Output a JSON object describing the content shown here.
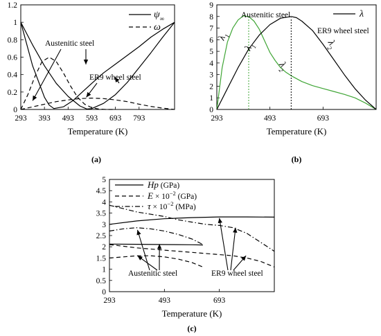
{
  "chart_data": [
    {
      "id": "a",
      "type": "line",
      "panel_label": "(a)",
      "xlabel": "Temperature (K)",
      "ylabel": "",
      "xlim": [
        293,
        943
      ],
      "ylim": [
        0,
        1.2
      ],
      "xticks": [
        293,
        393,
        493,
        593,
        693,
        793
      ],
      "yticks": [
        0,
        0.2,
        0.4,
        0.6,
        0.8,
        1,
        1.2
      ],
      "legend_position": "top-right",
      "legend": [
        {
          "symbol": "ψ",
          "subscript": "∞",
          "style": "solid"
        },
        {
          "symbol": "ω",
          "subscript": "",
          "style": "dashed"
        }
      ],
      "series": [
        {
          "material": "Austenitic steel",
          "quantity": "psi",
          "style": "solid",
          "x": [
            293,
            343,
            393,
            413,
            433,
            473,
            513,
            553,
            593,
            643,
            693,
            743,
            793,
            843,
            893,
            943
          ],
          "y": [
            1,
            0.5,
            0.14,
            0.05,
            0.01,
            0.03,
            0.1,
            0.2,
            0.3,
            0.42,
            0.52,
            0.62,
            0.72,
            0.83,
            0.92,
            1
          ]
        },
        {
          "material": "ER9 wheel steel",
          "quantity": "psi",
          "style": "solid",
          "x": [
            293,
            343,
            393,
            443,
            493,
            543,
            573,
            593,
            643,
            693,
            743,
            793,
            843,
            893,
            943
          ],
          "y": [
            1,
            0.74,
            0.5,
            0.3,
            0.15,
            0.04,
            0.005,
            0.01,
            0.07,
            0.17,
            0.31,
            0.48,
            0.65,
            0.83,
            1
          ]
        },
        {
          "material": "Austenitic steel",
          "quantity": "omega",
          "style": "dashed",
          "x": [
            293,
            323,
            353,
            383,
            413,
            443,
            473,
            503,
            533,
            563,
            593,
            623,
            653,
            683
          ],
          "y": [
            0,
            0.17,
            0.38,
            0.55,
            0.6,
            0.55,
            0.42,
            0.27,
            0.14,
            0.06,
            0.02,
            0.005,
            0,
            0
          ]
        },
        {
          "material": "ER9 wheel steel",
          "quantity": "omega",
          "style": "dashed",
          "x": [
            293,
            343,
            393,
            443,
            493,
            543,
            593,
            643,
            693,
            743,
            793,
            843,
            893,
            943
          ],
          "y": [
            0,
            0.03,
            0.06,
            0.09,
            0.11,
            0.125,
            0.13,
            0.125,
            0.11,
            0.09,
            0.06,
            0.035,
            0.015,
            0
          ]
        }
      ],
      "annotations": [
        {
          "text": "Austenitic steel",
          "arrows": [
            [
              343,
              0.1
            ],
            [
              433,
              0.04
            ]
          ]
        },
        {
          "text": "ER9 wheel steel",
          "arrows": [
            [
              570,
              0.14
            ],
            [
              690,
              0.37
            ]
          ]
        }
      ]
    },
    {
      "id": "b",
      "type": "line",
      "panel_label": "(b)",
      "xlabel": "Temperature (K)",
      "ylabel": "",
      "xlim": [
        293,
        893
      ],
      "ylim": [
        0,
        9
      ],
      "xticks": [
        293,
        493,
        693
      ],
      "yticks": [
        0,
        1,
        2,
        3,
        4,
        5,
        6,
        7,
        8,
        9
      ],
      "legend_position": "top-right",
      "legend": [
        {
          "symbol": "λ",
          "style": "solid"
        }
      ],
      "colors": {
        "austenitic": "#3fa535",
        "er9": "#000000"
      },
      "series": [
        {
          "material": "Austenitic steel",
          "color": "#3fa535",
          "x": [
            293,
            313,
            333,
            353,
            373,
            393,
            413,
            433,
            453,
            473,
            493,
            513,
            533,
            553,
            573,
            613,
            653,
            693,
            733,
            773,
            813,
            853,
            893
          ],
          "y": [
            0,
            3.6,
            5.8,
            7,
            7.7,
            8.05,
            8,
            7.6,
            6.9,
            5.9,
            4.9,
            4.2,
            3.6,
            3.2,
            2.9,
            2.4,
            2.05,
            1.8,
            1.55,
            1.3,
            1.0,
            0.55,
            0
          ]
        },
        {
          "material": "ER9 wheel steel",
          "color": "#000000",
          "x": [
            293,
            333,
            373,
            413,
            453,
            493,
            533,
            573,
            593,
            613,
            653,
            693,
            733,
            773,
            813,
            853,
            893
          ],
          "y": [
            0,
            1.8,
            3.6,
            5.2,
            6.4,
            7.3,
            7.85,
            8,
            7.9,
            7.6,
            6.8,
            5.6,
            4.3,
            3.0,
            1.8,
            0.8,
            0
          ]
        }
      ],
      "peaks": [
        {
          "x": 413,
          "color": "#3fa535"
        },
        {
          "x": 573,
          "color": "#000000"
        }
      ],
      "labels": [
        {
          "text": "Austenitic steel",
          "color": "#3fa535"
        },
        {
          "text": "ER9 wheel steel",
          "color": "#000000"
        }
      ],
      "curve_labels": [
        {
          "symbol": "λ",
          "subscript": "1",
          "color": "#3fa535",
          "x": 324,
          "y": 6.2,
          "rotate": -70
        },
        {
          "symbol": "λ",
          "subscript": "2",
          "color": "#3fa535",
          "x": 535,
          "y": 3.6,
          "rotate": 55
        },
        {
          "symbol": "λ",
          "subscript": "1",
          "color": "#000000",
          "x": 424,
          "y": 5.3,
          "rotate": -65
        },
        {
          "symbol": "λ",
          "subscript": "2",
          "color": "#000000",
          "x": 718,
          "y": 5.5,
          "rotate": 60
        }
      ]
    },
    {
      "id": "c",
      "type": "line",
      "panel_label": "(c)",
      "xlabel": "Temperature (K)",
      "ylabel": "",
      "xlim": [
        293,
        893
      ],
      "ylim": [
        0,
        5
      ],
      "xticks": [
        293,
        493,
        693
      ],
      "yticks": [
        0,
        0.5,
        1,
        1.5,
        2,
        2.5,
        3,
        3.5,
        4,
        4.5,
        5
      ],
      "ytick_labels": [
        "0",
        "0.5",
        "1",
        "1.5",
        "2",
        "2.5",
        "3",
        "3.5",
        "4",
        "4.5",
        "5"
      ],
      "legend_position": "top-left",
      "legend": [
        {
          "symbol": "Hp",
          "rest": " (GPa)",
          "style": "solid"
        },
        {
          "symbol": "E",
          "rest": " × 10",
          "sup": "−2",
          "rest2": " (GPa)",
          "style": "dashed"
        },
        {
          "symbol": "τ",
          "rest": " × 10",
          "sup": "−2",
          "rest2": " (MPa)",
          "style": "dashdot"
        }
      ],
      "series": [
        {
          "material": "ER9 wheel steel",
          "quantity": "Hp",
          "style": "solid",
          "x": [
            293,
            393,
            493,
            593,
            693,
            793,
            893
          ],
          "y": [
            3.0,
            3.15,
            3.25,
            3.3,
            3.33,
            3.33,
            3.32
          ]
        },
        {
          "material": "Austenitic steel",
          "quantity": "Hp",
          "style": "solid",
          "x": [
            293,
            393,
            493,
            593,
            633
          ],
          "y": [
            2.12,
            2.11,
            2.1,
            2.09,
            2.08
          ]
        },
        {
          "material": "ER9 wheel steel",
          "quantity": "E",
          "style": "dashed",
          "x": [
            293,
            393,
            493,
            593,
            643,
            693,
            743,
            793,
            843,
            893
          ],
          "y": [
            2.1,
            1.95,
            1.85,
            1.75,
            1.7,
            1.65,
            1.6,
            1.5,
            1.35,
            1.1
          ]
        },
        {
          "material": "Austenitic steel",
          "quantity": "E",
          "style": "dashed",
          "x": [
            293,
            343,
            393,
            443,
            493,
            543,
            593,
            633
          ],
          "y": [
            1.5,
            1.55,
            1.6,
            1.6,
            1.55,
            1.45,
            1.3,
            1.1
          ]
        },
        {
          "material": "ER9 wheel steel",
          "quantity": "tau",
          "style": "dashdot",
          "x": [
            293,
            343,
            393,
            443,
            493,
            543,
            593,
            643,
            693,
            743,
            793,
            843,
            893
          ],
          "y": [
            3.85,
            3.7,
            3.55,
            3.45,
            3.35,
            3.2,
            3.1,
            3.0,
            2.95,
            2.85,
            2.6,
            2.2,
            1.8
          ]
        },
        {
          "material": "Austenitic steel",
          "quantity": "tau",
          "style": "dashdot",
          "x": [
            293,
            343,
            393,
            443,
            493,
            543,
            593,
            633
          ],
          "y": [
            2.7,
            2.8,
            2.85,
            2.8,
            2.7,
            2.55,
            2.35,
            2.1
          ]
        }
      ],
      "annotations": [
        {
          "text": "Austenitic steel",
          "arrows": [
            [
              395,
              2.75
            ],
            [
              395,
              1.6
            ],
            [
              475,
              2.12
            ]
          ]
        },
        {
          "text": "ER9 wheel steel",
          "arrows": [
            [
              693,
              3.28
            ],
            [
              752,
              2.85
            ],
            [
              790,
              1.6
            ]
          ]
        }
      ]
    }
  ]
}
